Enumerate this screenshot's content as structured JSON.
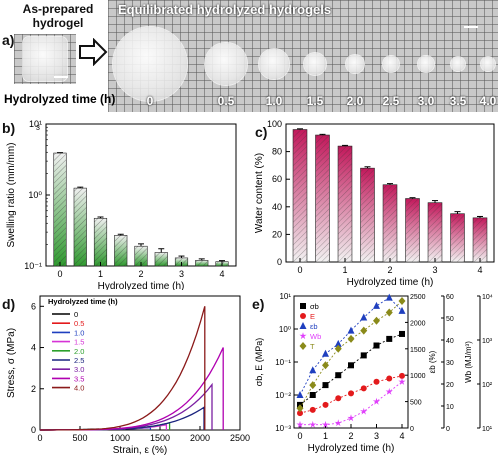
{
  "panel_a": {
    "label": "a)",
    "as_prepared_title": "As-prepared hydrogel",
    "equilibrated_title": "Equilibrated hydrolyzed hydrogels",
    "time_label": "Hydrolyzed time (h)",
    "times": [
      "0",
      "0.5",
      "1.0",
      "1.5",
      "2.0",
      "2.5",
      "3.0",
      "3.5",
      "4.0"
    ],
    "disc_sizes_rel": [
      1.0,
      0.56,
      0.4,
      0.3,
      0.24,
      0.22,
      0.21,
      0.2,
      0.19
    ]
  },
  "chart_data": [
    {
      "panel": "b)",
      "type": "bar",
      "xlabel": "Hydrolyzed time (h)",
      "ylabel": "Swelling ratio (mm/mm)",
      "ylabel_superscript": "3",
      "yscale": "log",
      "ylim": [
        0.1,
        10
      ],
      "x": [
        0,
        0.5,
        1,
        1.5,
        2,
        2.5,
        3,
        3.5,
        4
      ],
      "x_ticks": [
        "0",
        "1",
        "2",
        "3",
        "4"
      ],
      "y_ticks": [
        "10⁻¹",
        "10⁰",
        "10¹"
      ],
      "values": [
        3.9,
        1.25,
        0.47,
        0.27,
        0.19,
        0.155,
        0.13,
        0.12,
        0.115
      ],
      "errors": [
        0.05,
        0.04,
        0.02,
        0.01,
        0.015,
        0.02,
        0.008,
        0.006,
        0.004
      ],
      "color_top": "#f0f0f0",
      "color_bottom": "#2f9a2f"
    },
    {
      "panel": "c)",
      "type": "bar",
      "xlabel": "Hydrolyzed time (h)",
      "ylabel": "Water content (%)",
      "ylim": [
        0,
        100
      ],
      "x": [
        0,
        0.5,
        1,
        1.5,
        2,
        2.5,
        3,
        3.5,
        4
      ],
      "x_ticks": [
        "0",
        "1",
        "2",
        "3",
        "4"
      ],
      "y_ticks": [
        "0",
        "20",
        "40",
        "60",
        "80",
        "100"
      ],
      "values": [
        96,
        92,
        84,
        68,
        56,
        46,
        43,
        35,
        32
      ],
      "errors": [
        0.5,
        0.5,
        0.5,
        1,
        0.8,
        0.6,
        1.5,
        1.5,
        1
      ],
      "color_top": "#c2185b",
      "color_bottom": "#f2f2f2"
    },
    {
      "panel": "d)",
      "type": "line",
      "xlabel": "Strain, ε (%)",
      "ylabel": "Stress, σ (MPa)",
      "legend_title": "Hydrolyzed time (h)",
      "xlim": [
        0,
        2500
      ],
      "ylim": [
        0,
        6.5
      ],
      "x_ticks": [
        "0",
        "500",
        "1000",
        "1500",
        "2000",
        "2500"
      ],
      "y_ticks": [
        "0",
        "2",
        "4",
        "6"
      ],
      "series": [
        {
          "name": "0",
          "color": "#000000",
          "break_strain": 730,
          "break_stress": 0.05
        },
        {
          "name": "0.5",
          "color": "#e31a1c",
          "break_strain": 1060,
          "break_stress": 0.08
        },
        {
          "name": "1.0",
          "color": "#1f3fbf",
          "break_strain": 1380,
          "break_stress": 0.12
        },
        {
          "name": "1.5",
          "color": "#d633d6",
          "break_strain": 1580,
          "break_stress": 0.25
        },
        {
          "name": "2.0",
          "color": "#2ca02c",
          "break_strain": 1620,
          "break_stress": 0.35
        },
        {
          "name": "2.5",
          "color": "#1a237e",
          "break_strain": 2050,
          "break_stress": 1.1
        },
        {
          "name": "3.0",
          "color": "#7b1fa2",
          "break_strain": 2150,
          "break_stress": 2.2
        },
        {
          "name": "3.5",
          "color": "#b000b0",
          "break_strain": 2290,
          "break_stress": 4.0
        },
        {
          "name": "4.0",
          "color": "#8b1a1a",
          "break_strain": 2060,
          "break_stress": 6.0
        }
      ]
    },
    {
      "panel": "e)",
      "type": "scatter",
      "xlabel": "Hydrolyzed time (h)",
      "ylabel_left": "σb, E (MPa)",
      "ylabel_strain": "εb (%)",
      "ylabel_wb": "Wb (MJ/m³)",
      "ylabel_T": "T (J/m²)",
      "xlim": [
        0,
        4
      ],
      "left_ticks": [
        "10⁻³",
        "10⁻²",
        "10⁻¹",
        "10⁰",
        "10¹"
      ],
      "strain_ticks": [
        "0",
        "500",
        "1000",
        "1500",
        "2000",
        "2500"
      ],
      "wb_ticks": [
        "0",
        "10",
        "20",
        "30",
        "40",
        "50",
        "60"
      ],
      "T_ticks": [
        "10¹",
        "10²",
        "10³",
        "10⁴"
      ],
      "x_ticks": [
        "0",
        "1",
        "2",
        "3",
        "4"
      ],
      "series": [
        {
          "name": "σb",
          "marker": "square",
          "color": "#000000",
          "x": [
            0,
            0.5,
            1,
            1.5,
            2,
            2.5,
            3,
            3.5,
            4
          ],
          "y_log": [
            -2.3,
            -2.0,
            -1.7,
            -1.4,
            -1.1,
            -0.8,
            -0.5,
            -0.3,
            -0.15
          ]
        },
        {
          "name": "E",
          "marker": "circle",
          "color": "#e31a1c",
          "x": [
            0,
            0.5,
            1,
            1.5,
            2,
            2.5,
            3,
            3.5,
            4
          ],
          "y_log": [
            -2.55,
            -2.45,
            -2.3,
            -2.1,
            -1.95,
            -1.8,
            -1.6,
            -1.5,
            -1.42
          ]
        },
        {
          "name": "εb",
          "marker": "triangle",
          "color": "#1f3fbf",
          "x": [
            0,
            0.5,
            1,
            1.5,
            2,
            2.5,
            3,
            3.5,
            4
          ],
          "y_log": [
            -2.0,
            -1.25,
            -0.75,
            -0.45,
            -0.05,
            0.35,
            0.7,
            0.95,
            0.55
          ]
        },
        {
          "name": "Wb",
          "marker": "star",
          "color": "#e040fb",
          "x": [
            0,
            0.5,
            1,
            1.5,
            2,
            2.5,
            3,
            3.5,
            4
          ],
          "y_log": [
            -2.9,
            -2.9,
            -2.9,
            -2.85,
            -2.7,
            -2.5,
            -2.2,
            -1.9,
            -1.6
          ]
        },
        {
          "name": "T",
          "marker": "diamond",
          "color": "#8a8a1a",
          "x": [
            0,
            0.5,
            1,
            1.5,
            2,
            2.5,
            3,
            3.5,
            4
          ],
          "y_log": [
            -2.4,
            -1.7,
            -1.1,
            -0.6,
            -0.3,
            -0.05,
            0.25,
            0.5,
            0.85
          ]
        }
      ]
    }
  ]
}
